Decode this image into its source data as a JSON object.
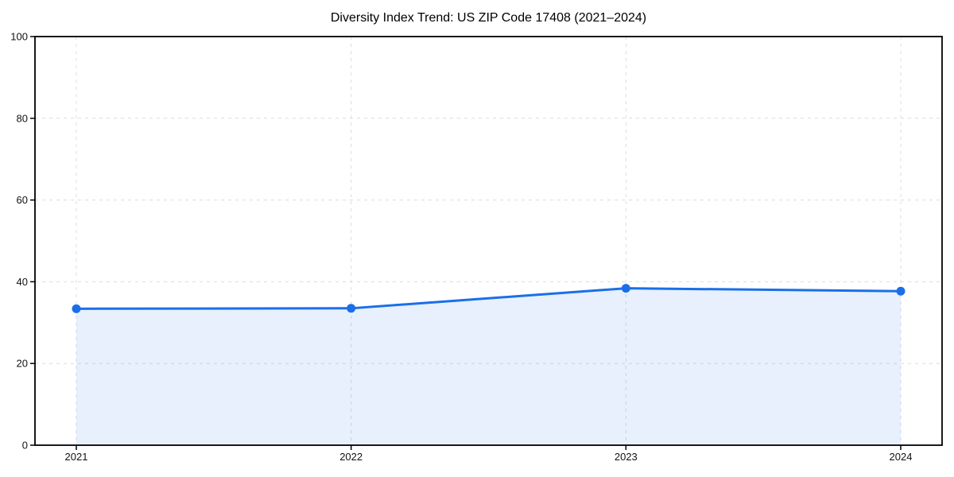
{
  "chart_data": {
    "type": "area",
    "title": "Diversity Index Trend: US ZIP Code 17408 (2021–2024)",
    "categories": [
      "2021",
      "2022",
      "2023",
      "2024"
    ],
    "series": [
      {
        "name": "Diversity Index",
        "values": [
          33.4,
          33.5,
          38.4,
          37.7
        ]
      }
    ],
    "xlabel": "",
    "ylabel": "",
    "ylim": [
      0,
      100
    ],
    "y_ticks": [
      0,
      20,
      40,
      60,
      80,
      100
    ],
    "grid": true,
    "grid_style": "dashed",
    "legend": "none",
    "colors": {
      "line": "#1a6fe8",
      "marker": "#1a6fe8",
      "fill": "rgba(26, 111, 232, 0.10)",
      "gridline": "#dcdcdc",
      "axis": "#000000",
      "tick_text": "#111111",
      "background": "#ffffff"
    }
  }
}
